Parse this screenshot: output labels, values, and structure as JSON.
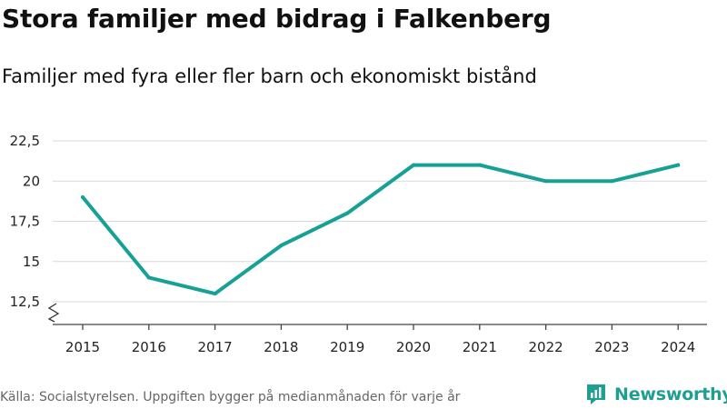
{
  "header": {
    "title": "Stora familjer med bidrag i Falkenberg",
    "subtitle": "Familjer med fyra eller fler barn och ekonomiskt bistånd"
  },
  "footer": {
    "source": "Källa: Socialstyrelsen. Uppgiften bygger på medianmånaden för varje år",
    "brand": "Newsworthy"
  },
  "colors": {
    "line": "#16a096",
    "grid": "#d9d9d9",
    "axis": "#444444"
  },
  "chart_data": {
    "type": "line",
    "title": "Stora familjer med bidrag i Falkenberg",
    "subtitle": "Familjer med fyra eller fler barn och ekonomiskt bistånd",
    "xlabel": "",
    "ylabel": "",
    "categories": [
      "2015",
      "2016",
      "2017",
      "2018",
      "2019",
      "2020",
      "2021",
      "2022",
      "2023",
      "2024"
    ],
    "series": [
      {
        "name": "Familjer",
        "values": [
          19,
          14,
          13,
          16,
          18,
          21,
          21,
          20,
          20,
          21
        ]
      }
    ],
    "ylim": [
      12.5,
      22.5
    ],
    "yticks": [
      12.5,
      15,
      17.5,
      20,
      22.5
    ],
    "ytick_labels": [
      "12,5",
      "15",
      "17,5",
      "20",
      "22,5"
    ],
    "grid": true,
    "axis_break": true
  }
}
